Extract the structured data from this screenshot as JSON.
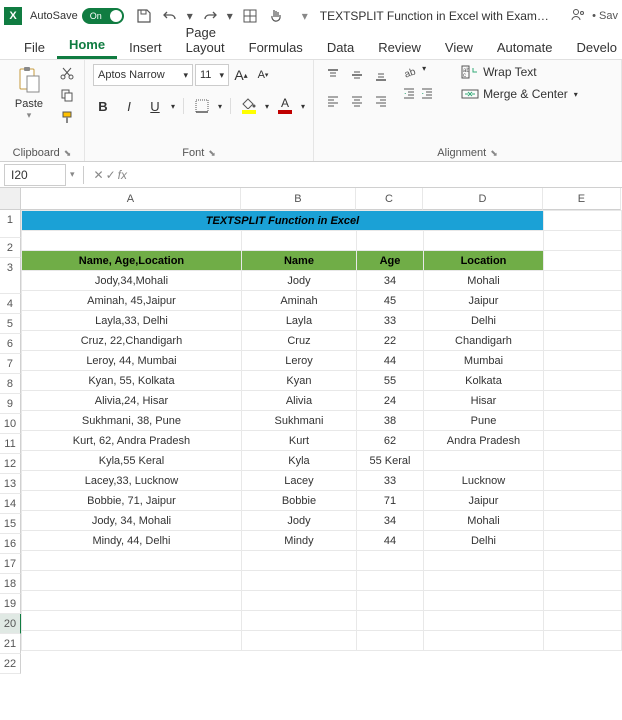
{
  "titlebar": {
    "autosave_label": "AutoSave",
    "autosave_state": "On",
    "doc_title": "TEXTSPLIT Function in Excel with Exam…",
    "save_indicator": "• Sav"
  },
  "tabs": {
    "file": "File",
    "home": "Home",
    "insert": "Insert",
    "page_layout": "Page Layout",
    "formulas": "Formulas",
    "data": "Data",
    "review": "Review",
    "view": "View",
    "automate": "Automate",
    "develop": "Develo"
  },
  "ribbon": {
    "clipboard": {
      "paste": "Paste",
      "label": "Clipboard"
    },
    "font": {
      "name": "Aptos Narrow",
      "size": "11",
      "label": "Font",
      "fill_color": "#ffff00",
      "font_color": "#c00000"
    },
    "alignment": {
      "wrap": "Wrap Text",
      "merge": "Merge & Center",
      "label": "Alignment"
    }
  },
  "formula_bar": {
    "cell_ref": "I20"
  },
  "columns": {
    "letters": [
      "A",
      "B",
      "C",
      "D",
      "E"
    ],
    "widths": [
      220,
      115,
      67,
      120,
      78
    ]
  },
  "sheet": {
    "title": "TEXTSPLIT Function in Excel",
    "headers": [
      "Name, Age,Location",
      "Name",
      "Age",
      "Location"
    ],
    "rows": [
      [
        "Jody,34,Mohali",
        "Jody",
        "34",
        "Mohali"
      ],
      [
        "Aminah, 45,Jaipur",
        "Aminah",
        "45",
        "Jaipur"
      ],
      [
        "Layla,33, Delhi",
        "Layla",
        "33",
        "Delhi"
      ],
      [
        "Cruz, 22,Chandigarh",
        "Cruz",
        "22",
        "Chandigarh"
      ],
      [
        "Leroy, 44, Mumbai",
        "Leroy",
        "44",
        "Mumbai"
      ],
      [
        "Kyan, 55, Kolkata",
        "Kyan",
        "55",
        "Kolkata"
      ],
      [
        "Alivia,24, Hisar",
        "Alivia",
        "24",
        "Hisar"
      ],
      [
        "Sukhmani, 38, Pune",
        "Sukhmani",
        "38",
        "Pune"
      ],
      [
        "Kurt, 62, Andra Pradesh",
        "Kurt",
        "62",
        "Andra Pradesh"
      ],
      [
        "Kyla,55 Keral",
        "Kyla",
        "55 Keral",
        ""
      ],
      [
        "Lacey,33, Lucknow",
        "Lacey",
        "33",
        "Lucknow"
      ],
      [
        "Bobbie, 71, Jaipur",
        "Bobbie",
        "71",
        "Jaipur"
      ],
      [
        "Jody, 34, Mohali",
        "Jody",
        "34",
        "Mohali"
      ],
      [
        "Mindy, 44, Delhi",
        "Mindy",
        "44",
        "Delhi"
      ]
    ],
    "row_count": 22,
    "active_row": 20,
    "colors": {
      "title_bg": "#1ba1d6",
      "header_bg": "#70ad47",
      "data_border": "#a9d08e"
    }
  }
}
